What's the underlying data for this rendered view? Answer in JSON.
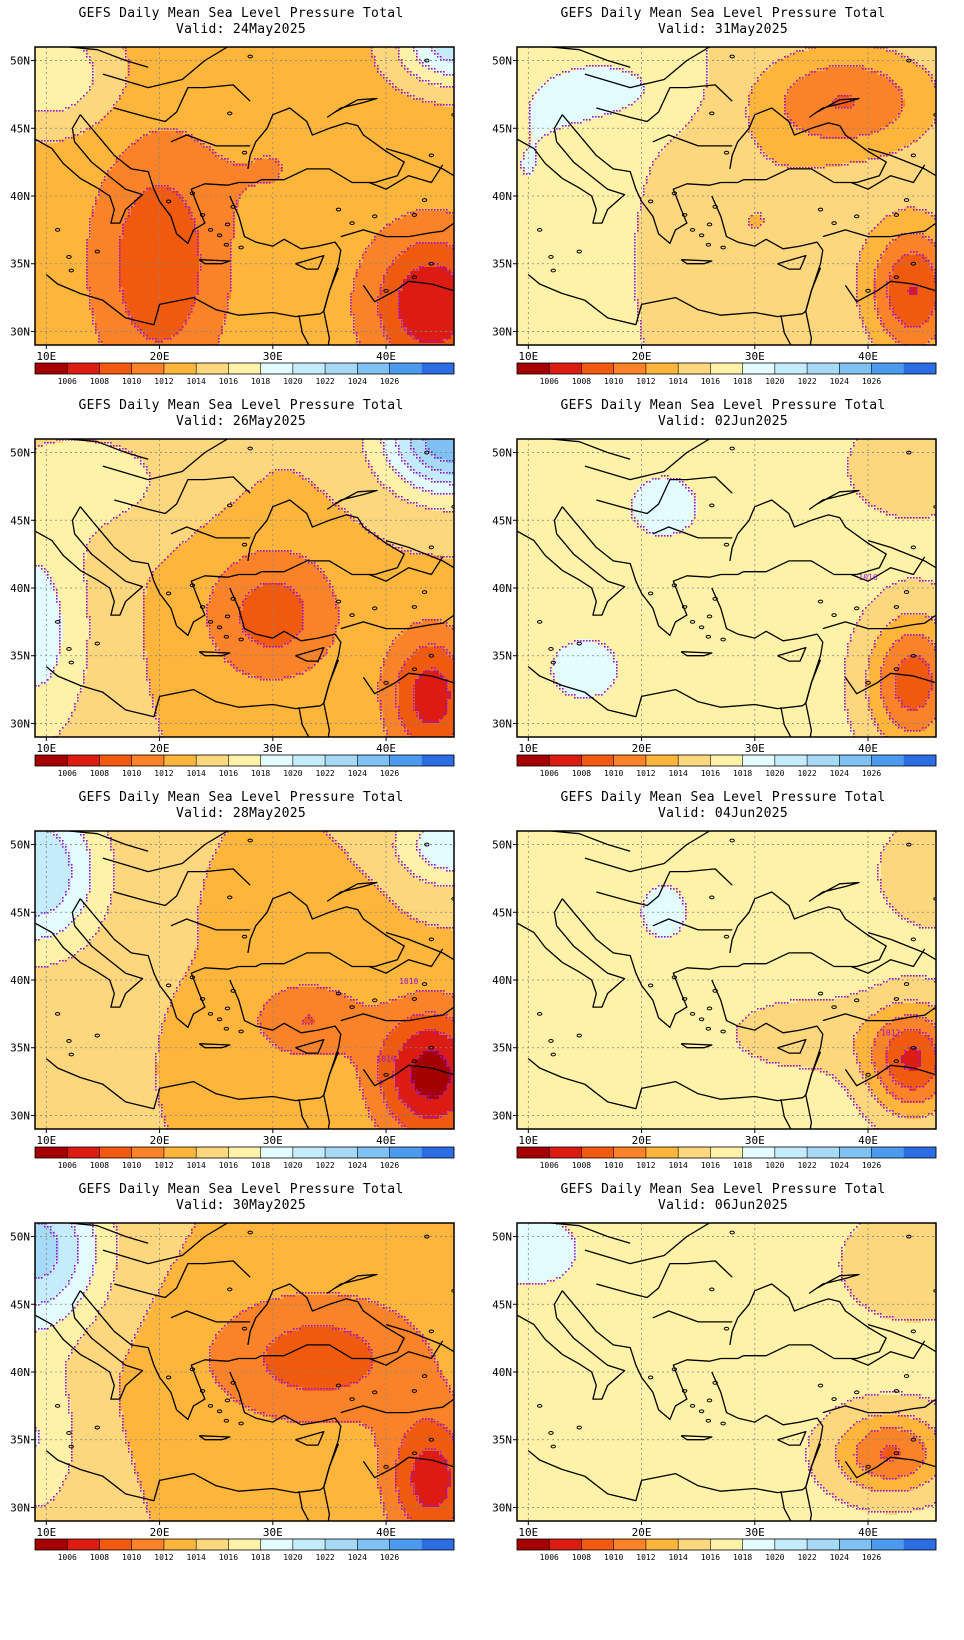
{
  "figure": {
    "panels": [
      {
        "id": "p1",
        "title": "GEFS Daily Mean Sea Level Pressure Total",
        "valid": "Valid: 24May2025",
        "scenario": 0
      },
      {
        "id": "p2",
        "title": "GEFS Daily Mean Sea Level Pressure Total",
        "valid": "Valid: 31May2025",
        "scenario": 1
      },
      {
        "id": "p3",
        "title": "GEFS Daily Mean Sea Level Pressure Total",
        "valid": "Valid: 26May2025",
        "scenario": 2
      },
      {
        "id": "p4",
        "title": "GEFS Daily Mean Sea Level Pressure Total",
        "valid": "Valid: 02Jun2025",
        "scenario": 3
      },
      {
        "id": "p5",
        "title": "GEFS Daily Mean Sea Level Pressure Total",
        "valid": "Valid: 28May2025",
        "scenario": 4
      },
      {
        "id": "p6",
        "title": "GEFS Daily Mean Sea Level Pressure Total",
        "valid": "Valid: 04Jun2025",
        "scenario": 5
      },
      {
        "id": "p7",
        "title": "GEFS Daily Mean Sea Level Pressure Total",
        "valid": "Valid: 30May2025",
        "scenario": 6
      },
      {
        "id": "p8",
        "title": "GEFS Daily Mean Sea Level Pressure Total",
        "valid": "Valid: 06Jun2025",
        "scenario": 7
      }
    ],
    "lat_labels": [
      "50N",
      "45N",
      "40N",
      "35N",
      "30N"
    ],
    "lon_labels": [
      "10E",
      "20E",
      "30E",
      "40E"
    ],
    "lat_values": [
      50,
      45,
      40,
      35,
      30
    ],
    "lon_values": [
      10,
      20,
      30,
      40
    ],
    "extent": {
      "lon_min": 9,
      "lon_max": 46,
      "lat_min": 29,
      "lat_max": 51
    },
    "colorbar": {
      "labels": [
        "1006",
        "1008",
        "1010",
        "1012",
        "1014",
        "1016",
        "1018",
        "1020",
        "1022",
        "1024",
        "1026"
      ],
      "colors": [
        "#a50000",
        "#dc1c12",
        "#f05a0f",
        "#fa8228",
        "#fdb53c",
        "#fdd77e",
        "#fef2a8",
        "#e3fcff",
        "#c5ecfb",
        "#a6daf6",
        "#7ec1f2",
        "#4c9bef",
        "#2b6de3"
      ]
    },
    "contour_labels": [
      {
        "panel": "p2",
        "text": "1016"
      },
      {
        "panel": "p4",
        "text": "1016"
      },
      {
        "panel": "p5",
        "text": "1010"
      },
      {
        "panel": "p5",
        "text": "1010"
      },
      {
        "panel": "p6",
        "text": "1012"
      }
    ],
    "contour_color": "#9b16c8"
  }
}
